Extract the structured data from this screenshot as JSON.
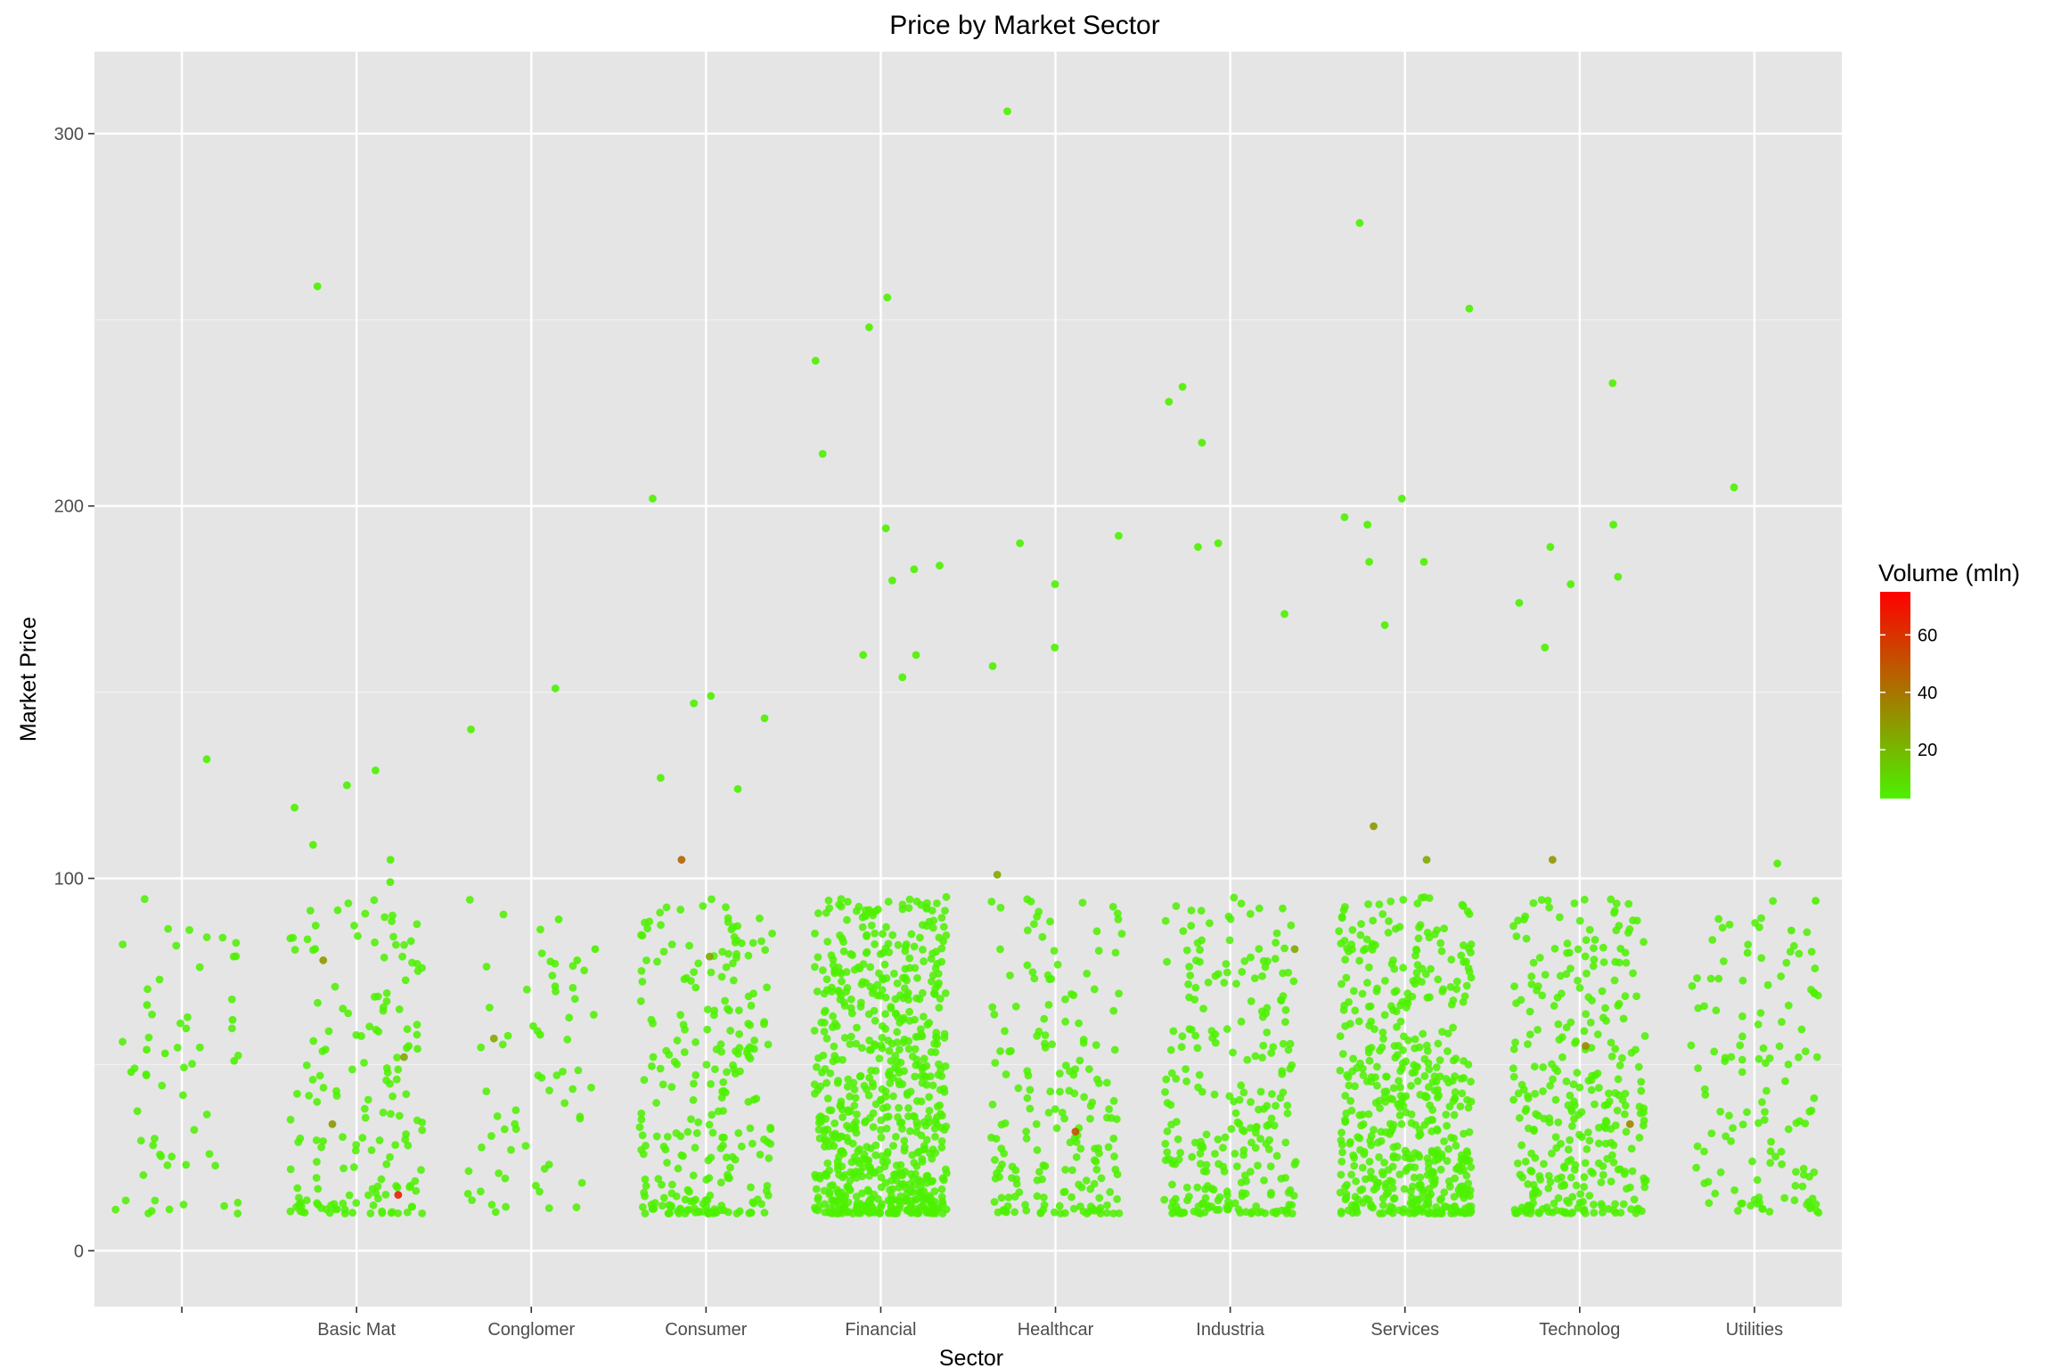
{
  "chart_data": {
    "type": "scatter",
    "title": "Price by Market Sector",
    "xlabel": "Sector",
    "ylabel": "Market Price",
    "x_categories": [
      "",
      "Basic Mat",
      "Conglomer",
      "Consumer",
      "Financial",
      "Healthcar",
      "Industria",
      "Services",
      "Technolog",
      "Utilities"
    ],
    "ylim": [
      -15,
      322
    ],
    "yticks": [
      0,
      100,
      200,
      300
    ],
    "grid": true,
    "jitter": "horizontal",
    "legend": {
      "title": "Volume (mln)",
      "placement": "right",
      "type": "color-gradient",
      "ticks": [
        20,
        40,
        60
      ],
      "range": [
        3,
        75
      ],
      "low_color": "#4cf100",
      "high_color": "#ff0000"
    },
    "approximate_points_per_sector": [
      55,
      160,
      60,
      250,
      700,
      190,
      260,
      520,
      320,
      125
    ],
    "series": [
      {
        "category": "",
        "notable_points": [
          {
            "price": 132,
            "volume_mln": 3
          },
          {
            "price": 66,
            "volume_mln": 3
          },
          {
            "price": 62,
            "volume_mln": 3
          },
          {
            "price": 54,
            "volume_mln": 3
          },
          {
            "price": 53,
            "volume_mln": 3
          },
          {
            "price": 51,
            "volume_mln": 3
          },
          {
            "price": 48,
            "volume_mln": 3
          }
        ]
      },
      {
        "category": "Basic Mat",
        "notable_points": [
          {
            "price": 259,
            "volume_mln": 3
          },
          {
            "price": 129,
            "volume_mln": 3
          },
          {
            "price": 125,
            "volume_mln": 3
          },
          {
            "price": 119,
            "volume_mln": 3
          },
          {
            "price": 109,
            "volume_mln": 3
          },
          {
            "price": 105,
            "volume_mln": 3
          },
          {
            "price": 99,
            "volume_mln": 3
          },
          {
            "price": 78,
            "volume_mln": 30
          },
          {
            "price": 52,
            "volume_mln": 25
          },
          {
            "price": 15,
            "volume_mln": 65
          },
          {
            "price": 34,
            "volume_mln": 30
          }
        ]
      },
      {
        "category": "Conglomer",
        "notable_points": [
          {
            "price": 151,
            "volume_mln": 3
          },
          {
            "price": 140,
            "volume_mln": 3
          },
          {
            "price": 89,
            "volume_mln": 3
          },
          {
            "price": 81,
            "volume_mln": 3
          },
          {
            "price": 78,
            "volume_mln": 3
          },
          {
            "price": 71,
            "volume_mln": 3
          },
          {
            "price": 58,
            "volume_mln": 3
          },
          {
            "price": 57,
            "volume_mln": 25
          }
        ]
      },
      {
        "category": "Consumer",
        "notable_points": [
          {
            "price": 202,
            "volume_mln": 3
          },
          {
            "price": 149,
            "volume_mln": 3
          },
          {
            "price": 147,
            "volume_mln": 3
          },
          {
            "price": 143,
            "volume_mln": 3
          },
          {
            "price": 127,
            "volume_mln": 3
          },
          {
            "price": 124,
            "volume_mln": 3
          },
          {
            "price": 105,
            "volume_mln": 45
          },
          {
            "price": 79,
            "volume_mln": 25
          }
        ]
      },
      {
        "category": "Financial",
        "notable_points": [
          {
            "price": 256,
            "volume_mln": 3
          },
          {
            "price": 248,
            "volume_mln": 3
          },
          {
            "price": 239,
            "volume_mln": 3
          },
          {
            "price": 214,
            "volume_mln": 3
          },
          {
            "price": 194,
            "volume_mln": 3
          },
          {
            "price": 184,
            "volume_mln": 3
          },
          {
            "price": 183,
            "volume_mln": 3
          },
          {
            "price": 180,
            "volume_mln": 3
          },
          {
            "price": 160,
            "volume_mln": 3
          },
          {
            "price": 160,
            "volume_mln": 3
          },
          {
            "price": 154,
            "volume_mln": 3
          }
        ]
      },
      {
        "category": "Healthcar",
        "notable_points": [
          {
            "price": 306,
            "volume_mln": 3
          },
          {
            "price": 192,
            "volume_mln": 3
          },
          {
            "price": 190,
            "volume_mln": 3
          },
          {
            "price": 179,
            "volume_mln": 3
          },
          {
            "price": 162,
            "volume_mln": 3
          },
          {
            "price": 157,
            "volume_mln": 3
          },
          {
            "price": 101,
            "volume_mln": 25
          },
          {
            "price": 32,
            "volume_mln": 50
          }
        ]
      },
      {
        "category": "Industria",
        "notable_points": [
          {
            "price": 232,
            "volume_mln": 3
          },
          {
            "price": 228,
            "volume_mln": 3
          },
          {
            "price": 217,
            "volume_mln": 3
          },
          {
            "price": 190,
            "volume_mln": 3
          },
          {
            "price": 189,
            "volume_mln": 3
          },
          {
            "price": 171,
            "volume_mln": 3
          },
          {
            "price": 81,
            "volume_mln": 25
          }
        ]
      },
      {
        "category": "Services",
        "notable_points": [
          {
            "price": 276,
            "volume_mln": 3
          },
          {
            "price": 253,
            "volume_mln": 3
          },
          {
            "price": 202,
            "volume_mln": 3
          },
          {
            "price": 197,
            "volume_mln": 3
          },
          {
            "price": 195,
            "volume_mln": 3
          },
          {
            "price": 185,
            "volume_mln": 3
          },
          {
            "price": 185,
            "volume_mln": 3
          },
          {
            "price": 168,
            "volume_mln": 3
          },
          {
            "price": 114,
            "volume_mln": 30
          },
          {
            "price": 105,
            "volume_mln": 25
          }
        ]
      },
      {
        "category": "Technolog",
        "notable_points": [
          {
            "price": 233,
            "volume_mln": 3
          },
          {
            "price": 195,
            "volume_mln": 3
          },
          {
            "price": 189,
            "volume_mln": 3
          },
          {
            "price": 181,
            "volume_mln": 3
          },
          {
            "price": 179,
            "volume_mln": 3
          },
          {
            "price": 174,
            "volume_mln": 3
          },
          {
            "price": 162,
            "volume_mln": 3
          },
          {
            "price": 105,
            "volume_mln": 30
          },
          {
            "price": 55,
            "volume_mln": 35
          },
          {
            "price": 34,
            "volume_mln": 35
          }
        ]
      },
      {
        "category": "Utilities",
        "notable_points": [
          {
            "price": 205,
            "volume_mln": 3
          },
          {
            "price": 104,
            "volume_mln": 3
          },
          {
            "price": 94,
            "volume_mln": 3
          },
          {
            "price": 86,
            "volume_mln": 3
          },
          {
            "price": 80,
            "volume_mln": 3
          }
        ]
      }
    ]
  }
}
